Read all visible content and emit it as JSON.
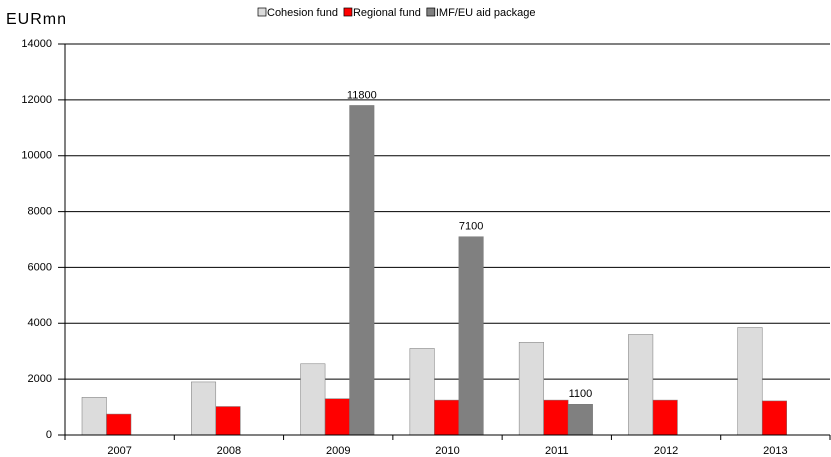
{
  "chart_data": {
    "type": "bar",
    "y_label": "EURmn",
    "categories": [
      "2007",
      "2008",
      "2009",
      "2010",
      "2011",
      "2012",
      "2013"
    ],
    "series": [
      {
        "name": "Cohesion fund",
        "color": "#dcdcdc",
        "values": [
          1350,
          1900,
          2550,
          3100,
          3320,
          3600,
          3850
        ]
      },
      {
        "name": "Regional fund",
        "color": "#ff0000",
        "values": [
          750,
          1020,
          1300,
          1250,
          1250,
          1250,
          1220
        ]
      },
      {
        "name": "IMF/EU aid package",
        "color": "#808080",
        "values": [
          null,
          null,
          11800,
          7100,
          1100,
          null,
          null
        ],
        "data_labels": true
      }
    ],
    "ylim": [
      0,
      14000
    ],
    "yticks": [
      0,
      2000,
      4000,
      6000,
      8000,
      10000,
      12000,
      14000
    ],
    "grid": true
  }
}
